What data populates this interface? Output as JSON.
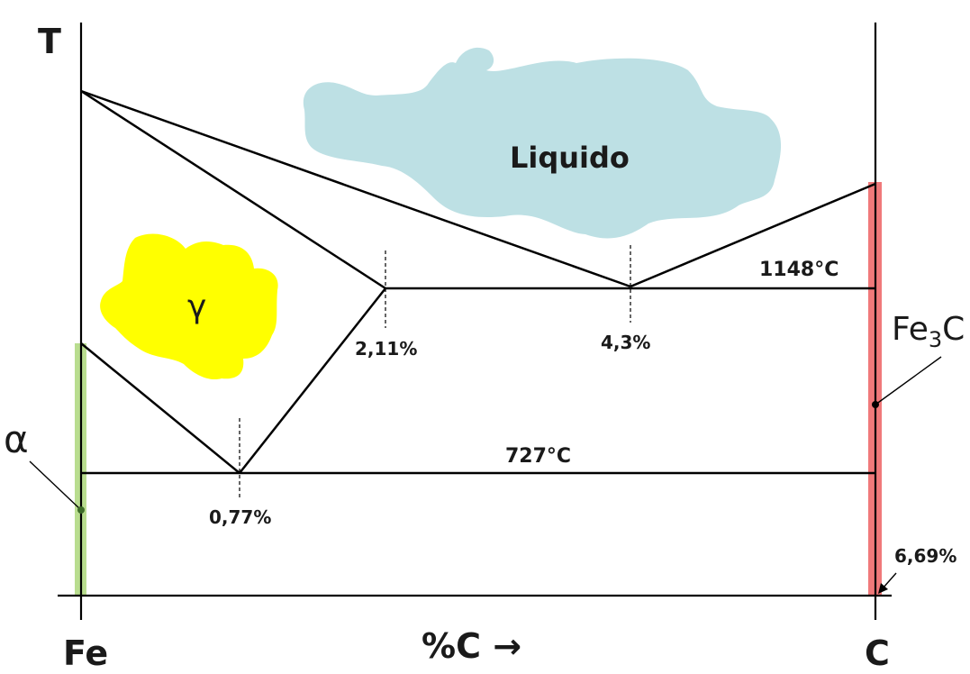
{
  "title": "",
  "axes": {
    "y_label": "T",
    "x_label": "%C →",
    "x_left_label": "Fe",
    "x_right_label": "C"
  },
  "regions": {
    "liquid": "Liquido",
    "gamma": "γ",
    "alpha": "α",
    "cementite": {
      "base": "Fe",
      "sub": "3",
      "tail": "C"
    }
  },
  "isotherms": {
    "eutectic": "1148°C",
    "eutectoid": "727°C"
  },
  "compositions": {
    "eutectoid_point": "0,77%",
    "max_solubility": "2,11%",
    "eutectic_point": "4,3%",
    "cementite_point": "6,69%"
  },
  "colors": {
    "liquid": "#bde0e4",
    "gamma": "#ffff00",
    "alpha_band": "#b9dd8f",
    "cementite_band": "#f0797a",
    "lines": "#000000"
  }
}
